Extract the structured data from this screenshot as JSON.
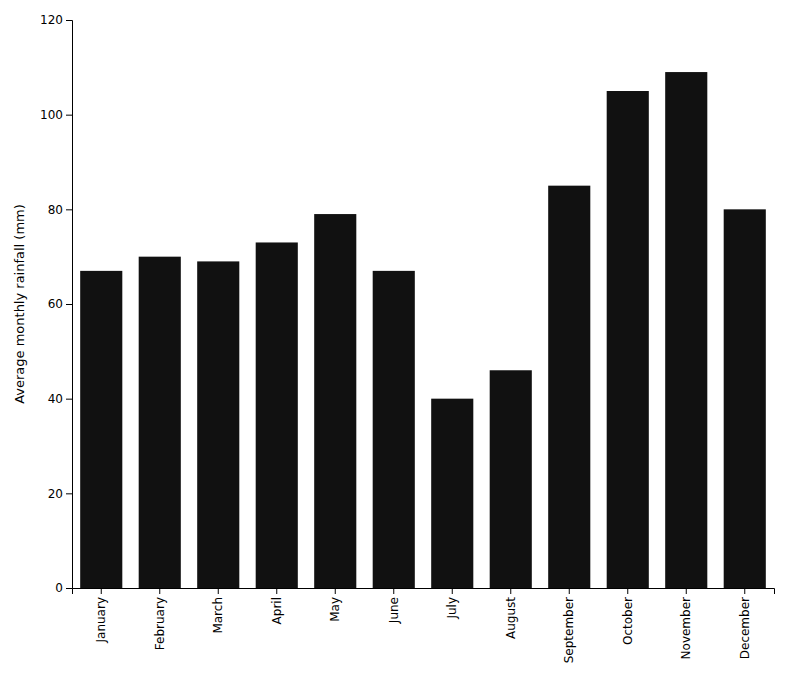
{
  "chart_data": {
    "type": "bar",
    "categories": [
      "January",
      "February",
      "March",
      "April",
      "May",
      "June",
      "July",
      "August",
      "September",
      "October",
      "November",
      "December"
    ],
    "values": [
      67,
      70,
      69,
      73,
      79,
      67,
      40,
      46,
      85,
      105,
      109,
      80
    ],
    "color": "#111111",
    "ylabel": "Average monthly rainfall (mm)",
    "ylim": [
      0,
      120
    ],
    "yticks": [
      0,
      20,
      40,
      60,
      80,
      100,
      120
    ],
    "grid": false
  }
}
